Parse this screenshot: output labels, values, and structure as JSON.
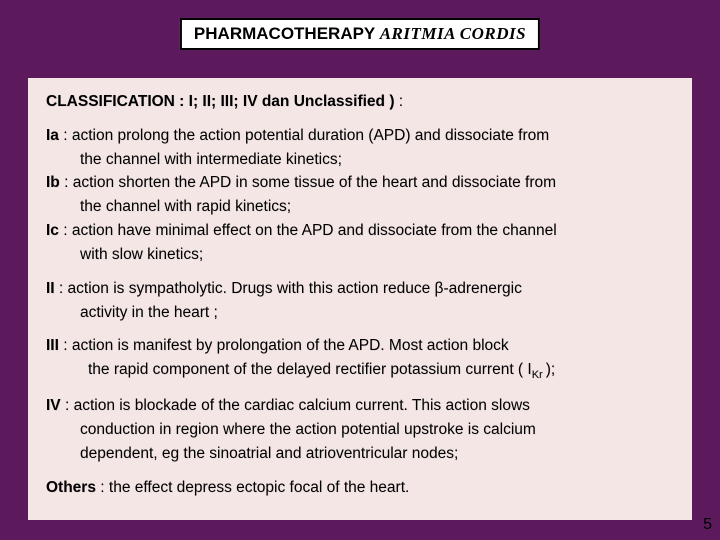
{
  "colors": {
    "background": "#5c1a5c",
    "panel": "#f5e6e6",
    "titlebox_bg": "#ffffff",
    "titlebox_border": "#000000",
    "text": "#000000"
  },
  "title": {
    "part1": "PHARMACOTHERAPY ",
    "part2": "ARITMIA CORDIS"
  },
  "classification": {
    "label": "CLASSIFICATION  :  I; II; III; IV dan Unclassified )",
    "trail": " :"
  },
  "classI": {
    "a_label": "Ia",
    "a_text1": " : action prolong the action potential duration (APD) and dissociate from",
    "a_text2": "the channel with intermediate kinetics;",
    "b_label": "Ib",
    "b_text1": " : action shorten the APD in some tissue of the heart and dissociate from",
    "b_text2": "the channel with rapid kinetics;",
    "c_label": "Ic",
    "c_text1": " : action have minimal effect on the APD and dissociate from the channel",
    "c_text2": "with slow kinetics;"
  },
  "classII": {
    "label": "II ",
    "text1_a": " : action is sympatholytic. Drugs with this action reduce ",
    "beta": "β",
    "text1_b": "-adrenergic",
    "text2": "activity in the heart ;"
  },
  "classIII": {
    "label": "III",
    "text1": " : action is manifest by prolongation of the APD. Most action block",
    "text2_a": " the rapid component of the delayed rectifier potassium current (  I",
    "ikr_sub": "Kr ",
    "text2_b": ");"
  },
  "classIV": {
    "label": "IV",
    "text1": " : action is blockade  of the cardiac calcium current. This action slows",
    "text2": "conduction in region where the action potential upstroke is calcium",
    "text3": "dependent, eg the sinoatrial and atrioventricular nodes;"
  },
  "others": {
    "label": "Others",
    "text": " : the effect depress ectopic focal of the heart."
  },
  "pagenum": "5"
}
